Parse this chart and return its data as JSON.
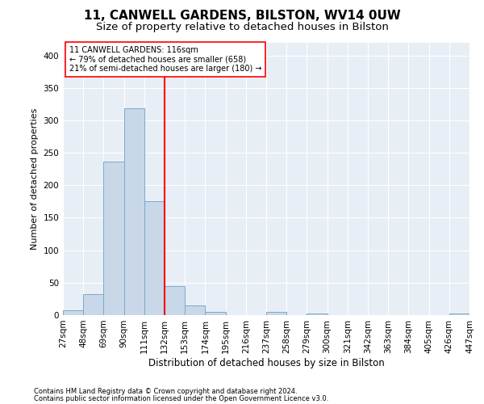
{
  "title": "11, CANWELL GARDENS, BILSTON, WV14 0UW",
  "subtitle": "Size of property relative to detached houses in Bilston",
  "xlabel": "Distribution of detached houses by size in Bilston",
  "ylabel": "Number of detached properties",
  "footnote1": "Contains HM Land Registry data © Crown copyright and database right 2024.",
  "footnote2": "Contains public sector information licensed under the Open Government Licence v3.0.",
  "bins": [
    "27sqm",
    "48sqm",
    "69sqm",
    "90sqm",
    "111sqm",
    "132sqm",
    "153sqm",
    "174sqm",
    "195sqm",
    "216sqm",
    "237sqm",
    "258sqm",
    "279sqm",
    "300sqm",
    "321sqm",
    "342sqm",
    "363sqm",
    "384sqm",
    "405sqm",
    "426sqm",
    "447sqm"
  ],
  "values": [
    8,
    32,
    237,
    319,
    176,
    45,
    15,
    5,
    0,
    0,
    5,
    0,
    3,
    0,
    0,
    0,
    0,
    0,
    0,
    3
  ],
  "bar_color": "#c8d8e8",
  "bar_edge_color": "#7aaac8",
  "highlight_line_color": "red",
  "annotation_text": "11 CANWELL GARDENS: 116sqm\n← 79% of detached houses are smaller (658)\n21% of semi-detached houses are larger (180) →",
  "annotation_box_color": "white",
  "annotation_box_edge": "red",
  "ylim": [
    0,
    420
  ],
  "yticks": [
    0,
    50,
    100,
    150,
    200,
    250,
    300,
    350,
    400
  ],
  "background_color": "#e8eef6",
  "grid_color": "white",
  "title_fontsize": 11,
  "subtitle_fontsize": 9.5,
  "xlabel_fontsize": 8.5,
  "ylabel_fontsize": 8,
  "tick_fontsize": 7.5,
  "annotation_fontsize": 7,
  "footnote_fontsize": 6
}
